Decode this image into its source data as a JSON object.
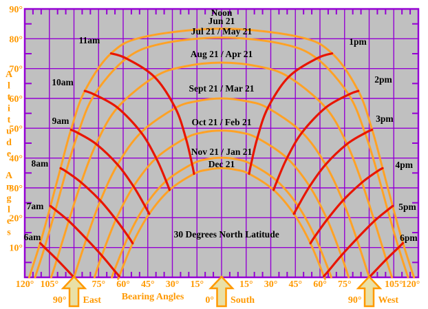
{
  "chart_data": {
    "type": "line",
    "title": "30 Degrees North Latitude",
    "xlabel": "Bearing Angles",
    "ylabel": "Altitude Angles",
    "x_axis": {
      "min": -120,
      "max": 120,
      "major_step": 15,
      "minor_step": 5,
      "unit": "degrees from South, East negative / West positive"
    },
    "y_axis": {
      "min": 0,
      "max": 90,
      "major_step": 10,
      "minor_step": 5,
      "unit": "degrees altitude"
    },
    "grid": true,
    "legend_position": "none",
    "annotations": [
      {
        "text": "Noon",
        "at": [
          0,
          87.7
        ]
      },
      {
        "text": "30 Degrees North Latitude",
        "at": [
          3,
          13.4
        ]
      }
    ],
    "month_curves": [
      {
        "label": "Jun 21",
        "label_alt": 84.9,
        "points": [
          [
            -117.3,
            0
          ],
          [
            -110.6,
            11.5
          ],
          [
            -104.3,
            23.9
          ],
          [
            -98.2,
            36.6
          ],
          [
            -91.8,
            49.5
          ],
          [
            -83.4,
            62.5
          ],
          [
            -67.4,
            75.1
          ],
          [
            -47.3,
            80.6
          ],
          [
            0,
            83.4
          ],
          [
            47.3,
            80.6
          ],
          [
            67.4,
            75.1
          ],
          [
            83.4,
            62.5
          ],
          [
            91.8,
            49.5
          ],
          [
            98.2,
            36.6
          ],
          [
            104.3,
            23.9
          ],
          [
            110.6,
            11.5
          ],
          [
            117.3,
            0
          ]
        ]
      },
      {
        "label": "Jul 21 / May 21",
        "label_alt": 81.5,
        "points": [
          [
            -113.7,
            0
          ],
          [
            -107.9,
            10.0
          ],
          [
            -101.3,
            22.6
          ],
          [
            -94.8,
            35.5
          ],
          [
            -87.5,
            48.4
          ],
          [
            -77.5,
            61.3
          ],
          [
            -58.1,
            73.4
          ],
          [
            -36.9,
            78.3
          ],
          [
            0,
            80.4
          ],
          [
            36.9,
            78.3
          ],
          [
            58.1,
            73.4
          ],
          [
            77.5,
            61.3
          ],
          [
            87.5,
            48.4
          ],
          [
            94.8,
            35.5
          ],
          [
            101.3,
            22.6
          ],
          [
            107.9,
            10.0
          ],
          [
            113.7,
            0
          ]
        ]
      },
      {
        "label": "Aug 21 / Apr 21",
        "label_alt": 73.8,
        "points": [
          [
            -103.9,
            0
          ],
          [
            -100.4,
            6.0
          ],
          [
            -93.2,
            18.9
          ],
          [
            -85.6,
            31.8
          ],
          [
            -76.5,
            44.7
          ],
          [
            -63.5,
            56.9
          ],
          [
            -40.9,
            67.2
          ],
          [
            -22.7,
            70.7
          ],
          [
            0,
            72.0
          ],
          [
            22.7,
            70.7
          ],
          [
            40.9,
            67.2
          ],
          [
            63.5,
            56.9
          ],
          [
            76.5,
            44.7
          ],
          [
            85.6,
            31.8
          ],
          [
            93.2,
            18.9
          ],
          [
            100.4,
            6.0
          ],
          [
            103.9,
            0
          ]
        ]
      },
      {
        "label": "Sept 21 / Mar 21",
        "label_alt": 62.3,
        "points": [
          [
            -90,
            0
          ],
          [
            -82.4,
            12.9
          ],
          [
            -73.9,
            25.7
          ],
          [
            -63.4,
            37.8
          ],
          [
            -49.1,
            48.6
          ],
          [
            -28.2,
            56.8
          ],
          [
            -14.8,
            59.1
          ],
          [
            0,
            60
          ],
          [
            14.8,
            59.1
          ],
          [
            28.2,
            56.8
          ],
          [
            49.1,
            48.6
          ],
          [
            63.4,
            37.8
          ],
          [
            73.9,
            25.7
          ],
          [
            82.4,
            12.9
          ],
          [
            90,
            0
          ]
        ]
      },
      {
        "label": "Oct 21 / Feb 21",
        "label_alt": 51.0,
        "points": [
          [
            -77.5,
            0
          ],
          [
            -73.0,
            7.3
          ],
          [
            -64.4,
            19.4
          ],
          [
            -53.7,
            30.5
          ],
          [
            -39.9,
            40.0
          ],
          [
            -21.8,
            46.7
          ],
          [
            -11.2,
            48.6
          ],
          [
            0,
            49.2
          ],
          [
            11.2,
            48.6
          ],
          [
            21.8,
            46.7
          ],
          [
            39.9,
            40.0
          ],
          [
            53.7,
            30.5
          ],
          [
            64.4,
            19.4
          ],
          [
            73.0,
            7.3
          ],
          [
            77.5,
            0
          ]
        ]
      },
      {
        "label": "Nov 21 / Jan 21",
        "label_alt": 41.1,
        "points": [
          [
            -66.9,
            0
          ],
          [
            -65.4,
            2.3
          ],
          [
            -56.9,
            13.7
          ],
          [
            -46.7,
            23.9
          ],
          [
            -33.8,
            32.3
          ],
          [
            -18.0,
            38.0
          ],
          [
            -9.2,
            39.6
          ],
          [
            0,
            40.1
          ],
          [
            9.2,
            39.6
          ],
          [
            18.0,
            38.0
          ],
          [
            33.8,
            32.3
          ],
          [
            46.7,
            23.9
          ],
          [
            56.9,
            13.7
          ],
          [
            65.4,
            2.3
          ],
          [
            66.9,
            0
          ]
        ]
      },
      {
        "label": "Dec 21",
        "label_alt": 36.9,
        "points": [
          [
            -62.6,
            0
          ],
          [
            -62.4,
            0.4
          ],
          [
            -54.2,
            11.4
          ],
          [
            -44.1,
            21.3
          ],
          [
            -31.7,
            29.3
          ],
          [
            -16.8,
            34.7
          ],
          [
            -8.5,
            36.1
          ],
          [
            0,
            36.6
          ],
          [
            8.5,
            36.1
          ],
          [
            16.8,
            34.7
          ],
          [
            31.7,
            29.3
          ],
          [
            44.1,
            21.3
          ],
          [
            54.2,
            11.4
          ],
          [
            62.4,
            0.4
          ],
          [
            62.6,
            0
          ]
        ]
      }
    ],
    "hour_curves": [
      {
        "label": "6am",
        "label_at": [
          -115.4,
          12.5
        ],
        "points": [
          [
            -110.6,
            11.5
          ],
          [
            -107.9,
            10.0
          ],
          [
            -100.4,
            6.0
          ],
          [
            -90,
            0
          ]
        ]
      },
      {
        "label": "7am",
        "label_at": [
          -113.7,
          22.8
        ],
        "points": [
          [
            -104.3,
            23.9
          ],
          [
            -101.3,
            22.6
          ],
          [
            -93.2,
            18.9
          ],
          [
            -82.4,
            12.9
          ],
          [
            -73.0,
            7.3
          ],
          [
            -65.4,
            2.3
          ],
          [
            -62.4,
            0.4
          ]
        ]
      },
      {
        "label": "8am",
        "label_at": [
          -110.8,
          37.2
        ],
        "points": [
          [
            -98.2,
            36.6
          ],
          [
            -94.8,
            35.5
          ],
          [
            -85.6,
            31.8
          ],
          [
            -73.9,
            25.7
          ],
          [
            -64.4,
            19.4
          ],
          [
            -56.9,
            13.7
          ],
          [
            -54.2,
            11.4
          ]
        ]
      },
      {
        "label": "9am",
        "label_at": [
          -98.2,
          51.5
        ],
        "points": [
          [
            -91.8,
            49.5
          ],
          [
            -87.5,
            48.4
          ],
          [
            -76.5,
            44.7
          ],
          [
            -63.4,
            37.8
          ],
          [
            -53.7,
            30.5
          ],
          [
            -46.7,
            23.9
          ],
          [
            -44.1,
            21.3
          ]
        ]
      },
      {
        "label": "10am",
        "label_at": [
          -96.9,
          64.4
        ],
        "points": [
          [
            -83.4,
            62.5
          ],
          [
            -77.5,
            61.3
          ],
          [
            -63.5,
            56.9
          ],
          [
            -49.1,
            48.6
          ],
          [
            -39.9,
            40.0
          ],
          [
            -33.8,
            32.3
          ],
          [
            -31.7,
            29.3
          ]
        ]
      },
      {
        "label": "11am",
        "label_at": [
          -80.6,
          78.5
        ],
        "points": [
          [
            -67.4,
            75.1
          ],
          [
            -58.1,
            73.4
          ],
          [
            -40.9,
            67.2
          ],
          [
            -28.2,
            56.8
          ],
          [
            -21.8,
            46.7
          ],
          [
            -18.0,
            38.0
          ],
          [
            -16.8,
            34.7
          ]
        ]
      },
      {
        "label": "1pm",
        "label_at": [
          83.1,
          78.0
        ],
        "points": [
          [
            67.4,
            75.1
          ],
          [
            58.1,
            73.4
          ],
          [
            40.9,
            67.2
          ],
          [
            28.2,
            56.8
          ],
          [
            21.8,
            46.7
          ],
          [
            18.0,
            38.0
          ],
          [
            16.8,
            34.7
          ]
        ]
      },
      {
        "label": "2pm",
        "label_at": [
          98.6,
          65.3
        ],
        "points": [
          [
            83.4,
            62.5
          ],
          [
            77.5,
            61.3
          ],
          [
            63.5,
            56.9
          ],
          [
            49.1,
            48.6
          ],
          [
            39.9,
            40.0
          ],
          [
            33.8,
            32.3
          ],
          [
            31.7,
            29.3
          ]
        ]
      },
      {
        "label": "3pm",
        "label_at": [
          99.4,
          52.2
        ],
        "points": [
          [
            91.8,
            49.5
          ],
          [
            87.5,
            48.4
          ],
          [
            76.5,
            44.7
          ],
          [
            63.4,
            37.8
          ],
          [
            53.7,
            30.5
          ],
          [
            46.7,
            23.9
          ],
          [
            44.1,
            21.3
          ]
        ]
      },
      {
        "label": "4pm",
        "label_at": [
          111.3,
          36.7
        ],
        "points": [
          [
            98.2,
            36.6
          ],
          [
            94.8,
            35.5
          ],
          [
            85.6,
            31.8
          ],
          [
            73.9,
            25.7
          ],
          [
            64.4,
            19.4
          ],
          [
            56.9,
            13.7
          ],
          [
            54.2,
            11.4
          ]
        ]
      },
      {
        "label": "5pm",
        "label_at": [
          113.3,
          22.6
        ],
        "points": [
          [
            104.3,
            23.9
          ],
          [
            101.3,
            22.6
          ],
          [
            93.2,
            18.9
          ],
          [
            82.4,
            12.9
          ],
          [
            73.0,
            7.3
          ],
          [
            65.4,
            2.3
          ],
          [
            62.4,
            0.4
          ]
        ]
      },
      {
        "label": "6pm",
        "label_at": [
          114.1,
          12.2
        ],
        "points": [
          [
            110.6,
            11.5
          ],
          [
            107.9,
            10.0
          ],
          [
            100.4,
            6.0
          ],
          [
            90,
            0
          ]
        ]
      }
    ],
    "compass": [
      {
        "degree_label": "90°",
        "name": "East",
        "bearing": -90
      },
      {
        "degree_label": "0°",
        "name": "South",
        "bearing": 0
      },
      {
        "degree_label": "90°",
        "name": "West",
        "bearing": 90
      }
    ],
    "x_tick_labels": [
      {
        "b": -120,
        "t": "120°"
      },
      {
        "b": -105,
        "t": "105°"
      },
      {
        "b": -75,
        "t": "75°"
      },
      {
        "b": -60,
        "t": "60°"
      },
      {
        "b": -45,
        "t": "45°"
      },
      {
        "b": -30,
        "t": "30°"
      },
      {
        "b": -15,
        "t": "15°"
      },
      {
        "b": 15,
        "t": "15°"
      },
      {
        "b": 30,
        "t": "30°"
      },
      {
        "b": 45,
        "t": "45°"
      },
      {
        "b": 60,
        "t": "60°"
      },
      {
        "b": 75,
        "t": "75°"
      },
      {
        "b": 105,
        "t": "105°"
      },
      {
        "b": 120,
        "t": "120°"
      }
    ],
    "y_tick_labels": [
      {
        "a": 90,
        "t": "90°"
      },
      {
        "a": 80,
        "t": "80°"
      },
      {
        "a": 70,
        "t": "70°"
      },
      {
        "a": 60,
        "t": "60°"
      },
      {
        "a": 50,
        "t": "50°"
      },
      {
        "a": 40,
        "t": "40°"
      },
      {
        "a": 30,
        "t": "30°"
      },
      {
        "a": 20,
        "t": "20°"
      },
      {
        "a": 10,
        "t": "10°"
      }
    ],
    "colors": {
      "page_background": "#FFFFFF",
      "plot_background": "#C0C0C0",
      "grid": "#9400D3",
      "month_curve": "#FFA226",
      "hour_curve": "#E81500",
      "axis_text": "#FF9900",
      "label_text": "#000000",
      "arrow_fill": "#E9E0A6",
      "arrow_stroke": "#FF9900"
    }
  }
}
